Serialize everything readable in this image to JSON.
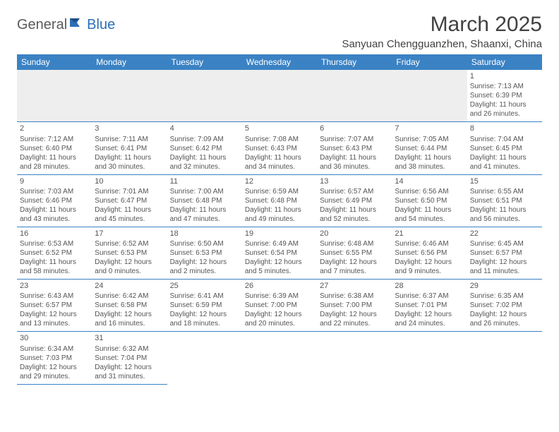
{
  "brand": {
    "part1": "General",
    "part2": "Blue"
  },
  "title": "March 2025",
  "location": "Sanyuan Chengguanzhen, Shaanxi, China",
  "colors": {
    "header_bg": "#3b82c4",
    "header_fg": "#ffffff",
    "brand_gray": "#5a5a5a",
    "brand_blue": "#2d6fb5",
    "cell_border": "#3b82c4",
    "empty_bg": "#eeeeee",
    "text": "#555555"
  },
  "weekdays": [
    "Sunday",
    "Monday",
    "Tuesday",
    "Wednesday",
    "Thursday",
    "Friday",
    "Saturday"
  ],
  "weeks": [
    [
      null,
      null,
      null,
      null,
      null,
      null,
      {
        "d": "1",
        "sr": "7:13 AM",
        "ss": "6:39 PM",
        "dl": "11 hours and 26 minutes."
      }
    ],
    [
      {
        "d": "2",
        "sr": "7:12 AM",
        "ss": "6:40 PM",
        "dl": "11 hours and 28 minutes."
      },
      {
        "d": "3",
        "sr": "7:11 AM",
        "ss": "6:41 PM",
        "dl": "11 hours and 30 minutes."
      },
      {
        "d": "4",
        "sr": "7:09 AM",
        "ss": "6:42 PM",
        "dl": "11 hours and 32 minutes."
      },
      {
        "d": "5",
        "sr": "7:08 AM",
        "ss": "6:43 PM",
        "dl": "11 hours and 34 minutes."
      },
      {
        "d": "6",
        "sr": "7:07 AM",
        "ss": "6:43 PM",
        "dl": "11 hours and 36 minutes."
      },
      {
        "d": "7",
        "sr": "7:05 AM",
        "ss": "6:44 PM",
        "dl": "11 hours and 38 minutes."
      },
      {
        "d": "8",
        "sr": "7:04 AM",
        "ss": "6:45 PM",
        "dl": "11 hours and 41 minutes."
      }
    ],
    [
      {
        "d": "9",
        "sr": "7:03 AM",
        "ss": "6:46 PM",
        "dl": "11 hours and 43 minutes."
      },
      {
        "d": "10",
        "sr": "7:01 AM",
        "ss": "6:47 PM",
        "dl": "11 hours and 45 minutes."
      },
      {
        "d": "11",
        "sr": "7:00 AM",
        "ss": "6:48 PM",
        "dl": "11 hours and 47 minutes."
      },
      {
        "d": "12",
        "sr": "6:59 AM",
        "ss": "6:48 PM",
        "dl": "11 hours and 49 minutes."
      },
      {
        "d": "13",
        "sr": "6:57 AM",
        "ss": "6:49 PM",
        "dl": "11 hours and 52 minutes."
      },
      {
        "d": "14",
        "sr": "6:56 AM",
        "ss": "6:50 PM",
        "dl": "11 hours and 54 minutes."
      },
      {
        "d": "15",
        "sr": "6:55 AM",
        "ss": "6:51 PM",
        "dl": "11 hours and 56 minutes."
      }
    ],
    [
      {
        "d": "16",
        "sr": "6:53 AM",
        "ss": "6:52 PM",
        "dl": "11 hours and 58 minutes."
      },
      {
        "d": "17",
        "sr": "6:52 AM",
        "ss": "6:53 PM",
        "dl": "12 hours and 0 minutes."
      },
      {
        "d": "18",
        "sr": "6:50 AM",
        "ss": "6:53 PM",
        "dl": "12 hours and 2 minutes."
      },
      {
        "d": "19",
        "sr": "6:49 AM",
        "ss": "6:54 PM",
        "dl": "12 hours and 5 minutes."
      },
      {
        "d": "20",
        "sr": "6:48 AM",
        "ss": "6:55 PM",
        "dl": "12 hours and 7 minutes."
      },
      {
        "d": "21",
        "sr": "6:46 AM",
        "ss": "6:56 PM",
        "dl": "12 hours and 9 minutes."
      },
      {
        "d": "22",
        "sr": "6:45 AM",
        "ss": "6:57 PM",
        "dl": "12 hours and 11 minutes."
      }
    ],
    [
      {
        "d": "23",
        "sr": "6:43 AM",
        "ss": "6:57 PM",
        "dl": "12 hours and 13 minutes."
      },
      {
        "d": "24",
        "sr": "6:42 AM",
        "ss": "6:58 PM",
        "dl": "12 hours and 16 minutes."
      },
      {
        "d": "25",
        "sr": "6:41 AM",
        "ss": "6:59 PM",
        "dl": "12 hours and 18 minutes."
      },
      {
        "d": "26",
        "sr": "6:39 AM",
        "ss": "7:00 PM",
        "dl": "12 hours and 20 minutes."
      },
      {
        "d": "27",
        "sr": "6:38 AM",
        "ss": "7:00 PM",
        "dl": "12 hours and 22 minutes."
      },
      {
        "d": "28",
        "sr": "6:37 AM",
        "ss": "7:01 PM",
        "dl": "12 hours and 24 minutes."
      },
      {
        "d": "29",
        "sr": "6:35 AM",
        "ss": "7:02 PM",
        "dl": "12 hours and 26 minutes."
      }
    ],
    [
      {
        "d": "30",
        "sr": "6:34 AM",
        "ss": "7:03 PM",
        "dl": "12 hours and 29 minutes."
      },
      {
        "d": "31",
        "sr": "6:32 AM",
        "ss": "7:04 PM",
        "dl": "12 hours and 31 minutes."
      },
      null,
      null,
      null,
      null,
      null
    ]
  ],
  "labels": {
    "sunrise": "Sunrise:",
    "sunset": "Sunset:",
    "daylight": "Daylight:"
  }
}
